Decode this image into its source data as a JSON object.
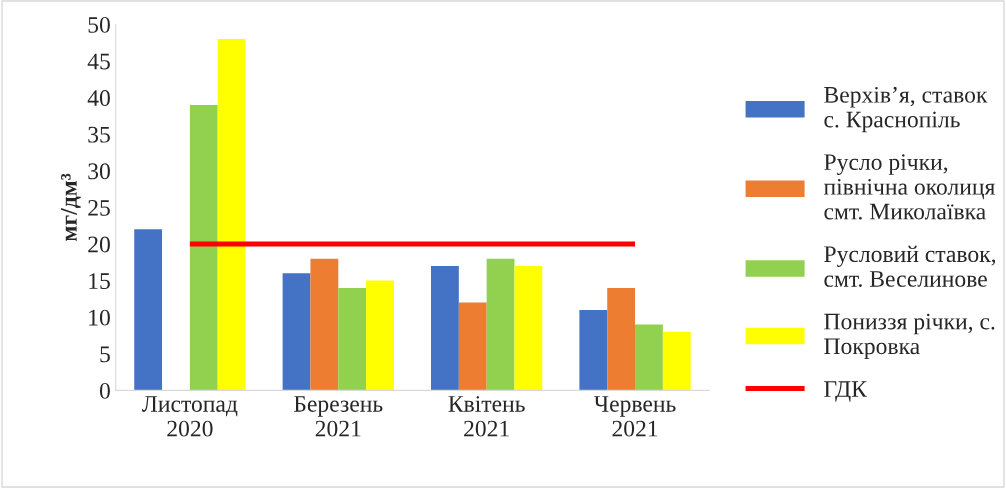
{
  "chart_data": {
    "type": "bar",
    "ylabel": "мг/дм³",
    "categories": [
      "Листопад\n2020",
      "Березень\n2021",
      "Квітень\n2021",
      "Червень\n2021"
    ],
    "series": [
      {
        "name": "Верхів’я, ставок\nс. Краснопіль",
        "color": "#4472c4",
        "values": [
          22,
          16,
          17,
          11
        ]
      },
      {
        "name": "Русло річки,\nпівнічна околиця\nсмт. Миколаївка",
        "color": "#ed7d31",
        "values": [
          null,
          18,
          12,
          14
        ]
      },
      {
        "name": "Русловий ставок,\nсмт. Веселинове",
        "color": "#92d050",
        "values": [
          39,
          14,
          18,
          9
        ]
      },
      {
        "name": "Пониззя річки, с.\nПокровка",
        "color": "#ffff00",
        "values": [
          48,
          15,
          17,
          8
        ]
      },
      {
        "name": "ГДК",
        "color": "#ff0000",
        "type": "line",
        "values": [
          20,
          20,
          20,
          20
        ]
      }
    ],
    "ylim": [
      0,
      50
    ],
    "yticks": [
      0,
      5,
      10,
      15,
      20,
      25,
      30,
      35,
      40,
      45,
      50
    ],
    "grid": false,
    "legend": "right"
  }
}
